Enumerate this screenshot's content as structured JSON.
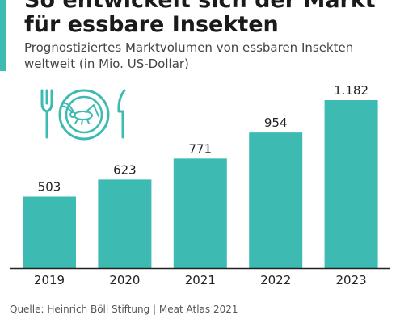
{
  "header": {
    "title_line1": "So entwickelt sich der Markt",
    "title_line2": "für essbare Insekten",
    "subtitle": "Prognostiziertes Marktvolumen von essbaren Insekten weltweit (in Mio. US-Dollar)"
  },
  "footer": {
    "source": "Quelle: Heinrich Böll Stiftung | Meat Atlas 2021"
  },
  "icons": {
    "illustration": "plate-fork-knife-cricket-icon"
  },
  "colors": {
    "accent": "#3dbbb2",
    "bar": "#3dbbb2",
    "axis": "#222222",
    "text": "#222222"
  },
  "chart_data": {
    "type": "bar",
    "categories": [
      "2019",
      "2020",
      "2021",
      "2022",
      "2023"
    ],
    "values": [
      503,
      623,
      771,
      954,
      1182
    ],
    "value_labels": [
      "503",
      "623",
      "771",
      "954",
      "1.182"
    ],
    "title": "So entwickelt sich der Markt für essbare Insekten",
    "subtitle": "Prognostiziertes Marktvolumen von essbaren Insekten weltweit (in Mio. US-Dollar)",
    "ylim": [
      0,
      1182
    ],
    "grid": false,
    "legend": "none"
  }
}
